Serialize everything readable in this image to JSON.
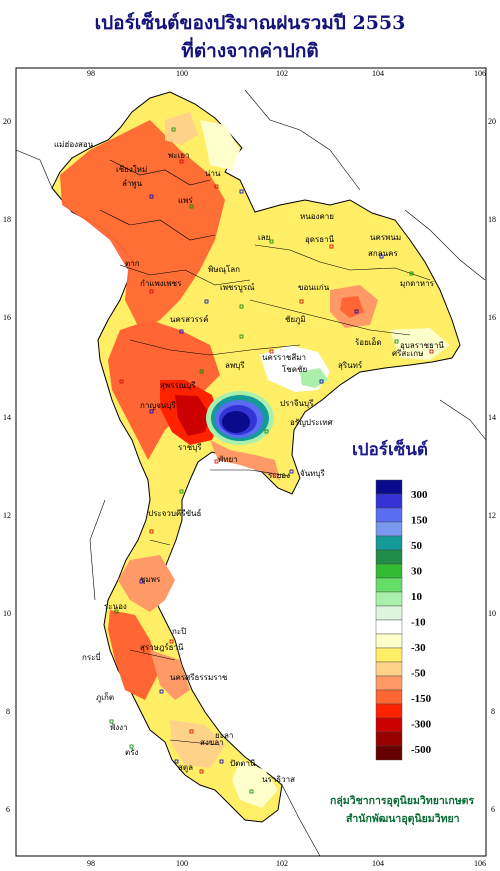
{
  "title_line1": "เปอร์เซ็นต์ของปริมาณฝนรวมปี  2553",
  "title_line2": "ที่ต่างจากค่าปกติ",
  "legend_title": "เปอร์เซ็นต์",
  "legend": {
    "colors": [
      "#0a0a8c",
      "#3333d6",
      "#5a6cf0",
      "#7a98f0",
      "#159a9a",
      "#1f8c4a",
      "#33bb33",
      "#66dd66",
      "#aaf0aa",
      "#ddf5dd",
      "#ffffff",
      "#ffffcc",
      "#ffee66",
      "#ffd28a",
      "#ff9966",
      "#ff6633",
      "#ff2200",
      "#cc0000",
      "#990000",
      "#660000"
    ],
    "labels": [
      "300",
      "150",
      "50",
      "30",
      "10",
      "-10",
      "-30",
      "-50",
      "-150",
      "-300",
      "-500"
    ]
  },
  "axes": {
    "lon_ticks": [
      "98",
      "100",
      "102",
      "104",
      "106"
    ],
    "lat_ticks": [
      "20",
      "18",
      "16",
      "14",
      "12",
      "10",
      "8",
      "6"
    ]
  },
  "provinces": [
    "แม่ฮ่องสอน",
    "เชียงใหม่",
    "ลำพูน",
    "พะเยา",
    "น่าน",
    "แพร่",
    "หนองคาย",
    "อุดรธานี",
    "นครพนม",
    "สกลนคร",
    "เลย",
    "ตาก",
    "กำแพงเพชร",
    "พิษณุโลก",
    "เพชรบูรณ์",
    "ขอนแก่น",
    "มุกดาหาร",
    "นครสวรรค์",
    "ชัยภูมิ",
    "ร้อยเอ็ด",
    "อุบลราชธานี",
    "ลพบุรี",
    "นครราชสีมา",
    "สุรินทร์",
    "สุพรรณบุรี",
    "โชคชัย",
    "ศรีสะเกษ",
    "กาญจนบุรี",
    "ปราจีนบุรี",
    "อรัญประเทศ",
    "ราชบุรี",
    "พัทยา",
    "ระยอง",
    "จันทบุรี",
    "ประจวบคีรีขันธ์",
    "ชุมพร",
    "ระนอง",
    "สุราษฎร์ธานี",
    "กะปิ",
    "นครศรีธรรมราช",
    "พังงา",
    "ภูเก็ต",
    "กระบี่",
    "ตรัง",
    "สงขลา",
    "ปัตตานี",
    "นราธิวาส",
    "ยะลา",
    "สตูล"
  ],
  "credit_line1": "กลุ่มวิชาการอุตุนิยมวิทยาเกษตร",
  "credit_line2": "สำนักพัฒนาอุตุนิยมวิทยา"
}
